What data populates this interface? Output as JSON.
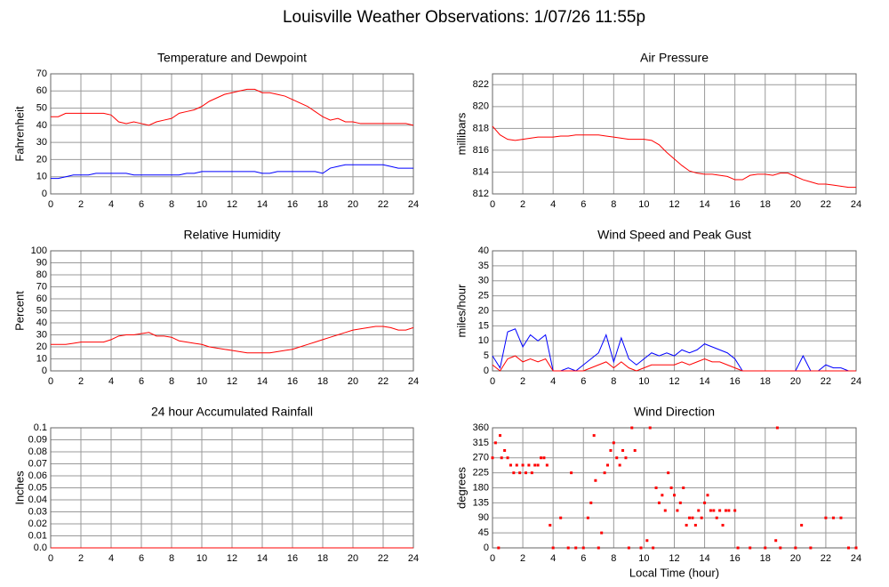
{
  "title": "Louisville Weather Observations: 1/07/26 11:55p",
  "chart_data": [
    {
      "type": "line",
      "title": "Temperature and Dewpoint",
      "ylabel": "Fahrenheit",
      "grid": true,
      "xlim": [
        0,
        24
      ],
      "xticks": [
        0,
        2,
        4,
        6,
        8,
        10,
        12,
        14,
        16,
        18,
        20,
        22,
        24
      ],
      "ylim": [
        0,
        70
      ],
      "yticks": [
        0,
        10,
        20,
        30,
        40,
        50,
        60,
        70
      ],
      "x": [
        0,
        0.5,
        1,
        1.5,
        2,
        2.5,
        3,
        3.5,
        4,
        4.5,
        5,
        5.5,
        6,
        6.5,
        7,
        7.5,
        8,
        8.5,
        9,
        9.5,
        10,
        10.5,
        11,
        11.5,
        12,
        12.5,
        13,
        13.5,
        14,
        14.5,
        15,
        15.5,
        16,
        16.5,
        17,
        17.5,
        18,
        18.5,
        19,
        19.5,
        20,
        20.5,
        21,
        21.5,
        22,
        22.5,
        23,
        23.5,
        24
      ],
      "series": [
        {
          "color": "#ff0000",
          "values": [
            45,
            45,
            47,
            47,
            47,
            47,
            47,
            47,
            46,
            42,
            41,
            42,
            41,
            40,
            42,
            43,
            44,
            47,
            48,
            49,
            51,
            54,
            56,
            58,
            59,
            60,
            61,
            61,
            59,
            59,
            58,
            57,
            55,
            53,
            51,
            48,
            45,
            43,
            44,
            42,
            42,
            41,
            41,
            41,
            41,
            41,
            41,
            41,
            40
          ]
        },
        {
          "color": "#0000ff",
          "values": [
            9,
            9,
            10,
            11,
            11,
            11,
            12,
            12,
            12,
            12,
            12,
            11,
            11,
            11,
            11,
            11,
            11,
            11,
            12,
            12,
            13,
            13,
            13,
            13,
            13,
            13,
            13,
            13,
            12,
            12,
            13,
            13,
            13,
            13,
            13,
            13,
            12,
            15,
            16,
            17,
            17,
            17,
            17,
            17,
            17,
            16,
            15,
            15,
            15
          ]
        }
      ]
    },
    {
      "type": "line",
      "title": "Air Pressure",
      "ylabel": "millibars",
      "grid": true,
      "xlim": [
        0,
        24
      ],
      "xticks": [
        0,
        2,
        4,
        6,
        8,
        10,
        12,
        14,
        16,
        18,
        20,
        22,
        24
      ],
      "ylim": [
        812,
        823
      ],
      "yticks": [
        812,
        814,
        816,
        818,
        820,
        822
      ],
      "x": [
        0,
        0.5,
        1,
        1.5,
        2,
        2.5,
        3,
        3.5,
        4,
        4.5,
        5,
        5.5,
        6,
        6.5,
        7,
        7.5,
        8,
        8.5,
        9,
        9.5,
        10,
        10.5,
        11,
        11.5,
        12,
        12.5,
        13,
        13.5,
        14,
        14.5,
        15,
        15.5,
        16,
        16.5,
        17,
        17.5,
        18,
        18.5,
        19,
        19.5,
        20,
        20.5,
        21,
        21.5,
        22,
        22.5,
        23,
        23.5,
        24
      ],
      "series": [
        {
          "color": "#ff0000",
          "values": [
            818.2,
            817.4,
            817.0,
            816.9,
            817.0,
            817.1,
            817.2,
            817.2,
            817.2,
            817.3,
            817.3,
            817.4,
            817.4,
            817.4,
            817.4,
            817.3,
            817.2,
            817.1,
            817.0,
            817.0,
            817.0,
            816.9,
            816.5,
            815.8,
            815.2,
            814.6,
            814.1,
            813.9,
            813.8,
            813.8,
            813.7,
            813.6,
            813.3,
            813.3,
            813.7,
            813.8,
            813.8,
            813.7,
            813.9,
            813.9,
            813.6,
            813.3,
            813.1,
            812.9,
            812.9,
            812.8,
            812.7,
            812.6,
            812.6
          ]
        }
      ]
    },
    {
      "type": "line",
      "title": "Relative Humidity",
      "ylabel": "Percent",
      "grid": true,
      "xlim": [
        0,
        24
      ],
      "xticks": [
        0,
        2,
        4,
        6,
        8,
        10,
        12,
        14,
        16,
        18,
        20,
        22,
        24
      ],
      "ylim": [
        0,
        100
      ],
      "yticks": [
        0,
        10,
        20,
        30,
        40,
        50,
        60,
        70,
        80,
        90,
        100
      ],
      "x": [
        0,
        0.5,
        1,
        1.5,
        2,
        2.5,
        3,
        3.5,
        4,
        4.5,
        5,
        5.5,
        6,
        6.5,
        7,
        7.5,
        8,
        8.5,
        9,
        9.5,
        10,
        10.5,
        11,
        11.5,
        12,
        12.5,
        13,
        13.5,
        14,
        14.5,
        15,
        15.5,
        16,
        16.5,
        17,
        17.5,
        18,
        18.5,
        19,
        19.5,
        20,
        20.5,
        21,
        21.5,
        22,
        22.5,
        23,
        23.5,
        24
      ],
      "series": [
        {
          "color": "#ff0000",
          "values": [
            22,
            22,
            22,
            23,
            24,
            24,
            24,
            24,
            26,
            29,
            30,
            30,
            31,
            32,
            29,
            29,
            28,
            25,
            24,
            23,
            22,
            20,
            19,
            18,
            17,
            16,
            15,
            15,
            15,
            15,
            16,
            17,
            18,
            20,
            22,
            24,
            26,
            28,
            30,
            32,
            34,
            35,
            36,
            37,
            37,
            36,
            34,
            34,
            36
          ]
        }
      ]
    },
    {
      "type": "line",
      "title": "Wind Speed and Peak Gust",
      "ylabel": "miles/hour",
      "grid": true,
      "xlim": [
        0,
        24
      ],
      "xticks": [
        0,
        2,
        4,
        6,
        8,
        10,
        12,
        14,
        16,
        18,
        20,
        22,
        24
      ],
      "ylim": [
        0,
        40
      ],
      "yticks": [
        0,
        5,
        10,
        15,
        20,
        25,
        30,
        35,
        40
      ],
      "x": [
        0,
        0.5,
        1,
        1.5,
        2,
        2.5,
        3,
        3.5,
        4,
        4.5,
        5,
        5.5,
        6,
        6.5,
        7,
        7.5,
        8,
        8.5,
        9,
        9.5,
        10,
        10.5,
        11,
        11.5,
        12,
        12.5,
        13,
        13.5,
        14,
        14.5,
        15,
        15.5,
        16,
        16.5,
        17,
        17.5,
        18,
        18.5,
        19,
        19.5,
        20,
        20.5,
        21,
        21.5,
        22,
        22.5,
        23,
        23.5,
        24
      ],
      "series": [
        {
          "color": "#0000ff",
          "values": [
            5,
            1,
            13,
            14,
            8,
            12,
            10,
            12,
            0,
            0,
            1,
            0,
            2,
            4,
            6,
            12,
            3,
            11,
            4,
            2,
            4,
            6,
            5,
            6,
            5,
            7,
            6,
            7,
            9,
            8,
            7,
            6,
            4,
            0,
            0,
            0,
            0,
            0,
            0,
            0,
            0,
            5,
            0,
            0,
            2,
            1,
            1,
            0,
            0
          ]
        },
        {
          "color": "#ff0000",
          "values": [
            2,
            0,
            4,
            5,
            3,
            4,
            3,
            4,
            0,
            0,
            0,
            0,
            0,
            1,
            2,
            3,
            1,
            3,
            1,
            0,
            1,
            2,
            2,
            2,
            2,
            3,
            2,
            3,
            4,
            3,
            3,
            2,
            1,
            0,
            0,
            0,
            0,
            0,
            0,
            0,
            0,
            0,
            0,
            0,
            0,
            0,
            0,
            0,
            0
          ]
        }
      ]
    },
    {
      "type": "line",
      "title": "24 hour Accumulated Rainfall",
      "ylabel": "Inches",
      "grid": true,
      "xlim": [
        0,
        24
      ],
      "xticks": [
        0,
        2,
        4,
        6,
        8,
        10,
        12,
        14,
        16,
        18,
        20,
        22,
        24
      ],
      "ylim": [
        0,
        0.1
      ],
      "yticks": [
        {
          "value": 0,
          "label": "0.0"
        },
        0.01,
        0.02,
        0.03,
        0.04,
        0.05,
        0.06,
        0.07,
        0.08,
        0.09,
        0.1
      ],
      "x": [
        0,
        24
      ],
      "series": [
        {
          "color": "#ff0000",
          "values": [
            0,
            0
          ]
        }
      ]
    },
    {
      "type": "scatter",
      "title": "Wind Direction",
      "ylabel": "degrees",
      "xlabel": "Local Time (hour)",
      "grid": true,
      "color": "#ff0000",
      "xlim": [
        0,
        24
      ],
      "xticks": [
        0,
        2,
        4,
        6,
        8,
        10,
        12,
        14,
        16,
        18,
        20,
        22,
        24
      ],
      "ylim": [
        0,
        360
      ],
      "yticks": [
        0,
        45,
        90,
        135,
        180,
        225,
        270,
        315,
        360
      ],
      "x": [
        0,
        0.2,
        0.4,
        0.5,
        0.6,
        0.8,
        1,
        1.2,
        1.4,
        1.6,
        1.8,
        2,
        2.2,
        2.4,
        2.6,
        2.8,
        3,
        3.2,
        3.4,
        3.6,
        3.8,
        4,
        4.5,
        5,
        5.2,
        5.5,
        6,
        6.3,
        6.5,
        6.7,
        6.8,
        7,
        7.2,
        7.4,
        7.6,
        7.8,
        8,
        8.2,
        8.4,
        8.6,
        8.8,
        9,
        9.2,
        9.4,
        9.8,
        10.2,
        10.4,
        10.6,
        10.8,
        11,
        11.2,
        11.4,
        11.6,
        11.8,
        12,
        12.2,
        12.4,
        12.6,
        12.8,
        13,
        13.2,
        13.4,
        13.6,
        13.8,
        14,
        14.2,
        14.4,
        14.6,
        14.8,
        15,
        15.2,
        15.4,
        15.6,
        16,
        16.2,
        17,
        18,
        18.7,
        18.8,
        19,
        20,
        20.4,
        21,
        22,
        22.5,
        23,
        23.5,
        24
      ],
      "values": [
        270,
        315,
        0,
        337,
        270,
        292,
        270,
        248,
        225,
        248,
        225,
        248,
        225,
        248,
        225,
        248,
        248,
        270,
        270,
        248,
        68,
        0,
        90,
        0,
        225,
        0,
        0,
        90,
        135,
        337,
        202,
        0,
        45,
        225,
        248,
        292,
        315,
        270,
        248,
        292,
        270,
        0,
        360,
        292,
        0,
        22,
        360,
        0,
        180,
        135,
        158,
        112,
        225,
        180,
        158,
        112,
        135,
        180,
        68,
        90,
        90,
        68,
        112,
        90,
        135,
        158,
        112,
        112,
        90,
        112,
        68,
        112,
        112,
        112,
        0,
        0,
        0,
        22,
        360,
        0,
        0,
        68,
        0,
        90,
        90,
        90,
        0,
        0
      ]
    }
  ]
}
